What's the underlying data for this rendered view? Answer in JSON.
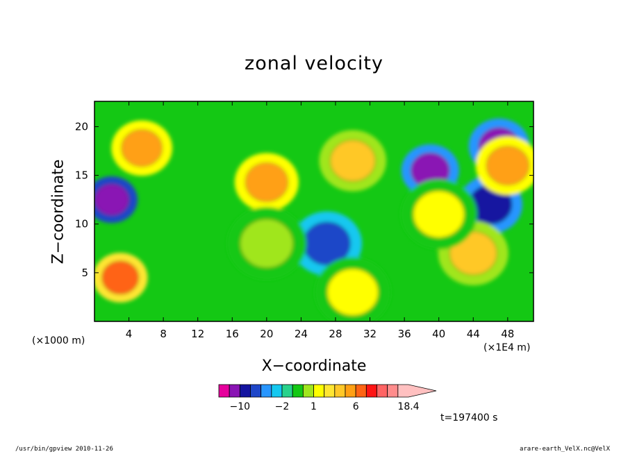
{
  "chart_data": {
    "type": "heatmap",
    "title": "zonal velocity",
    "xlabel": "X−coordinate",
    "ylabel": "Z−coordinate",
    "x_unit": "(×1E4 m)",
    "y_unit": "(×1000 m)",
    "xlim": [
      0,
      51
    ],
    "ylim": [
      0,
      22.6
    ],
    "x_ticks": [
      4,
      8,
      12,
      16,
      20,
      24,
      28,
      32,
      36,
      40,
      44,
      48
    ],
    "y_ticks": [
      5,
      10,
      15,
      20
    ],
    "colorbar": {
      "levels": [
        -14,
        -10,
        -6,
        -4,
        -3,
        -2,
        -1,
        0,
        1,
        2,
        3,
        4,
        6,
        8,
        10,
        12,
        14,
        16,
        18.4
      ],
      "colors": [
        "#e6009c",
        "#8a14b4",
        "#1414a0",
        "#1e46c8",
        "#2896ff",
        "#14c8f0",
        "#28d28c",
        "#14c814",
        "#a0e61e",
        "#ffff00",
        "#ffe632",
        "#ffc828",
        "#ffa014",
        "#ff6414",
        "#ff1414",
        "#ff6464",
        "#ff8c8c",
        "#ffc0c0"
      ],
      "tick_labels": [
        "−10",
        "−2",
        "1",
        "6",
        "18.4"
      ]
    },
    "features": [
      {
        "x": 3,
        "y": 4.5,
        "value": 9
      },
      {
        "x": 2,
        "y": 12.5,
        "value": -10
      },
      {
        "x": 5.5,
        "y": 17.8,
        "value": 7
      },
      {
        "x": 20,
        "y": 14.3,
        "value": 6
      },
      {
        "x": 30,
        "y": 16.5,
        "value": 5
      },
      {
        "x": 39,
        "y": 15.5,
        "value": -8
      },
      {
        "x": 27,
        "y": 8,
        "value": -4
      },
      {
        "x": 46,
        "y": 12,
        "value": -6
      },
      {
        "x": 47,
        "y": 18,
        "value": -7
      },
      {
        "x": 48,
        "y": 16,
        "value": 6
      },
      {
        "x": 44,
        "y": 7,
        "value": 4
      },
      {
        "x": 40,
        "y": 11,
        "value": 2
      },
      {
        "x": 20,
        "y": 8,
        "value": 1
      },
      {
        "x": 30,
        "y": 3,
        "value": 2
      }
    ],
    "timestamp_label": "t=197400 s"
  },
  "footer": {
    "left": "/usr/bin/gpview   2010-11-26",
    "right": "arare-earth_VelX.nc@VelX"
  }
}
